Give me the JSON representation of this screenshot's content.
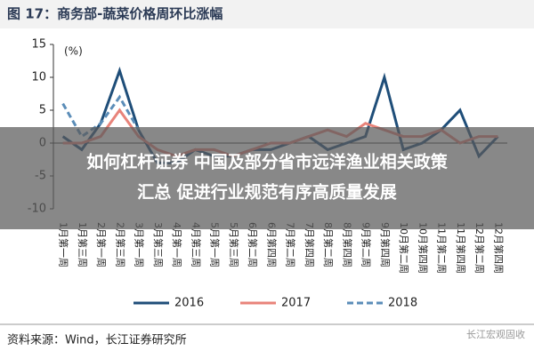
{
  "chart_data": {
    "type": "line",
    "title": "图 17：商务部-蔬菜价格周环比涨幅",
    "y_label": "(%)",
    "categories": [
      "1月第一周",
      "1月第三周",
      "2月第一周",
      "2月第三周",
      "3月第一周",
      "3月第三周",
      "4月第一周",
      "4月第三周",
      "5月第一周",
      "5月第三周",
      "6月第二周",
      "6月第四周",
      "7月第二周",
      "7月第四周",
      "8月第二周",
      "8月第四周",
      "9月第二周",
      "9月第四周",
      "10月第二周",
      "10月第四周",
      "11月第二周",
      "11月第四周",
      "12月第二周",
      "12月第四周"
    ],
    "series": [
      {
        "name": "2016",
        "color": "#1f4e79",
        "dash": false,
        "values": [
          1,
          -1,
          3,
          11,
          2,
          -3,
          -3,
          -1,
          -2,
          -2,
          -1,
          -1,
          0,
          1,
          -1,
          0,
          1,
          10,
          -1,
          0,
          2,
          5,
          -2,
          1
        ]
      },
      {
        "name": "2017",
        "color": "#e8837a",
        "dash": false,
        "values": [
          0,
          0,
          1,
          5,
          1,
          -1,
          -2,
          -1,
          -1,
          -2,
          -1,
          0,
          0,
          1,
          2,
          1,
          3,
          2,
          1,
          1,
          2,
          0,
          1,
          1
        ]
      },
      {
        "name": "2018",
        "color": "#5b8db8",
        "dash": true,
        "values": [
          6,
          1,
          3,
          7,
          2,
          null,
          null,
          null,
          null,
          null,
          null,
          null,
          null,
          null,
          null,
          null,
          null,
          null,
          null,
          null,
          null,
          null,
          null,
          null
        ]
      }
    ],
    "ylim": [
      -10,
      15
    ],
    "yticks": [
      15,
      10,
      5,
      0,
      -5,
      -10
    ]
  },
  "banner": [
    "如何杠杆证券 中国及部分省市远洋渔业相关政策",
    "汇总 促进行业规范有序高质量发展"
  ],
  "source": "资料来源：Wind，长江证券研究所",
  "watermark": "长江宏观固收"
}
